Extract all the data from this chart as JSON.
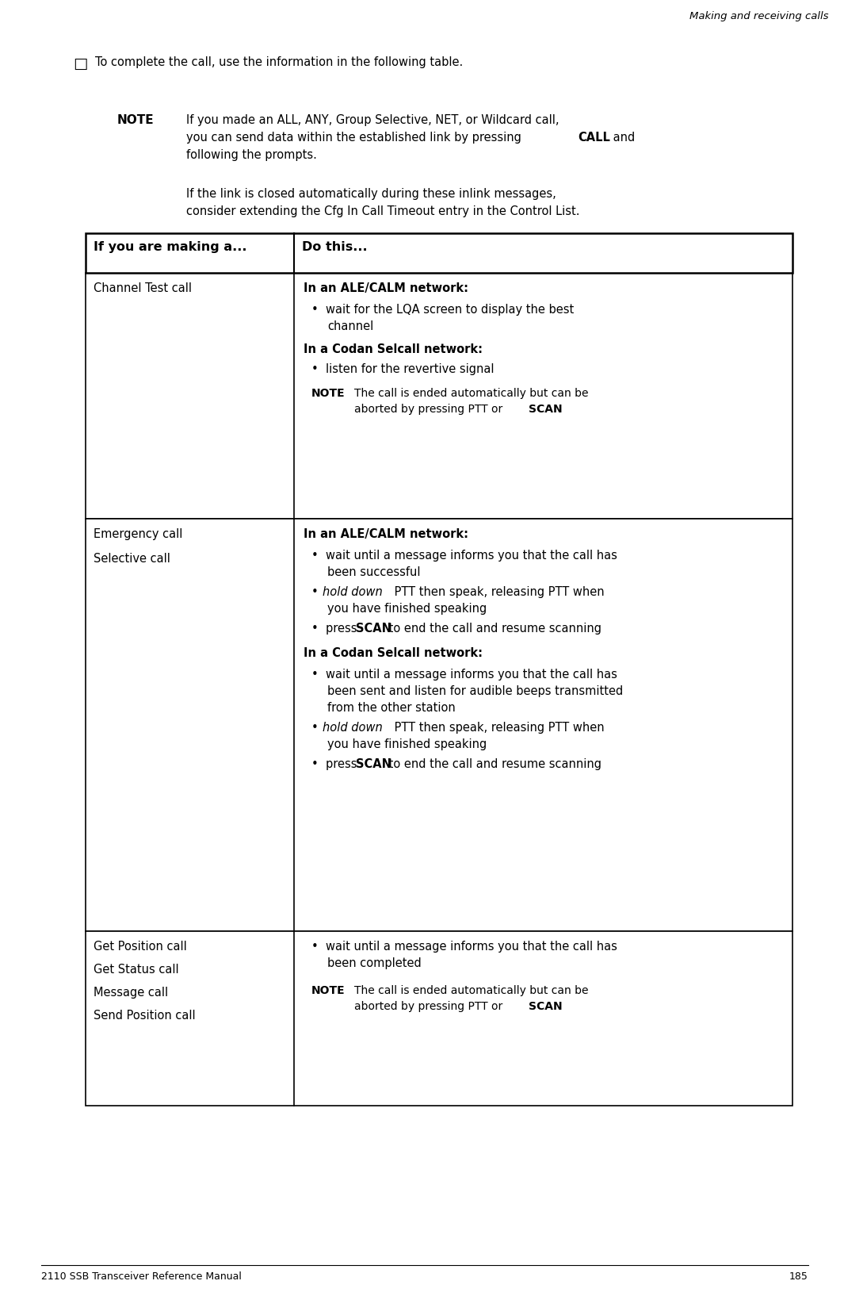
{
  "page_title": "Making and receiving calls",
  "page_number": "185",
  "footer_left": "2110 SSB Transceiver Reference Manual",
  "bg_color": "#ffffff",
  "fs_body": 10.5,
  "fs_bold_header": 11.0,
  "fs_note": 10.0,
  "fs_footer": 9.0,
  "fs_title": 9.5,
  "fs_table_header": 11.5,
  "fs_bullet_char": 13
}
